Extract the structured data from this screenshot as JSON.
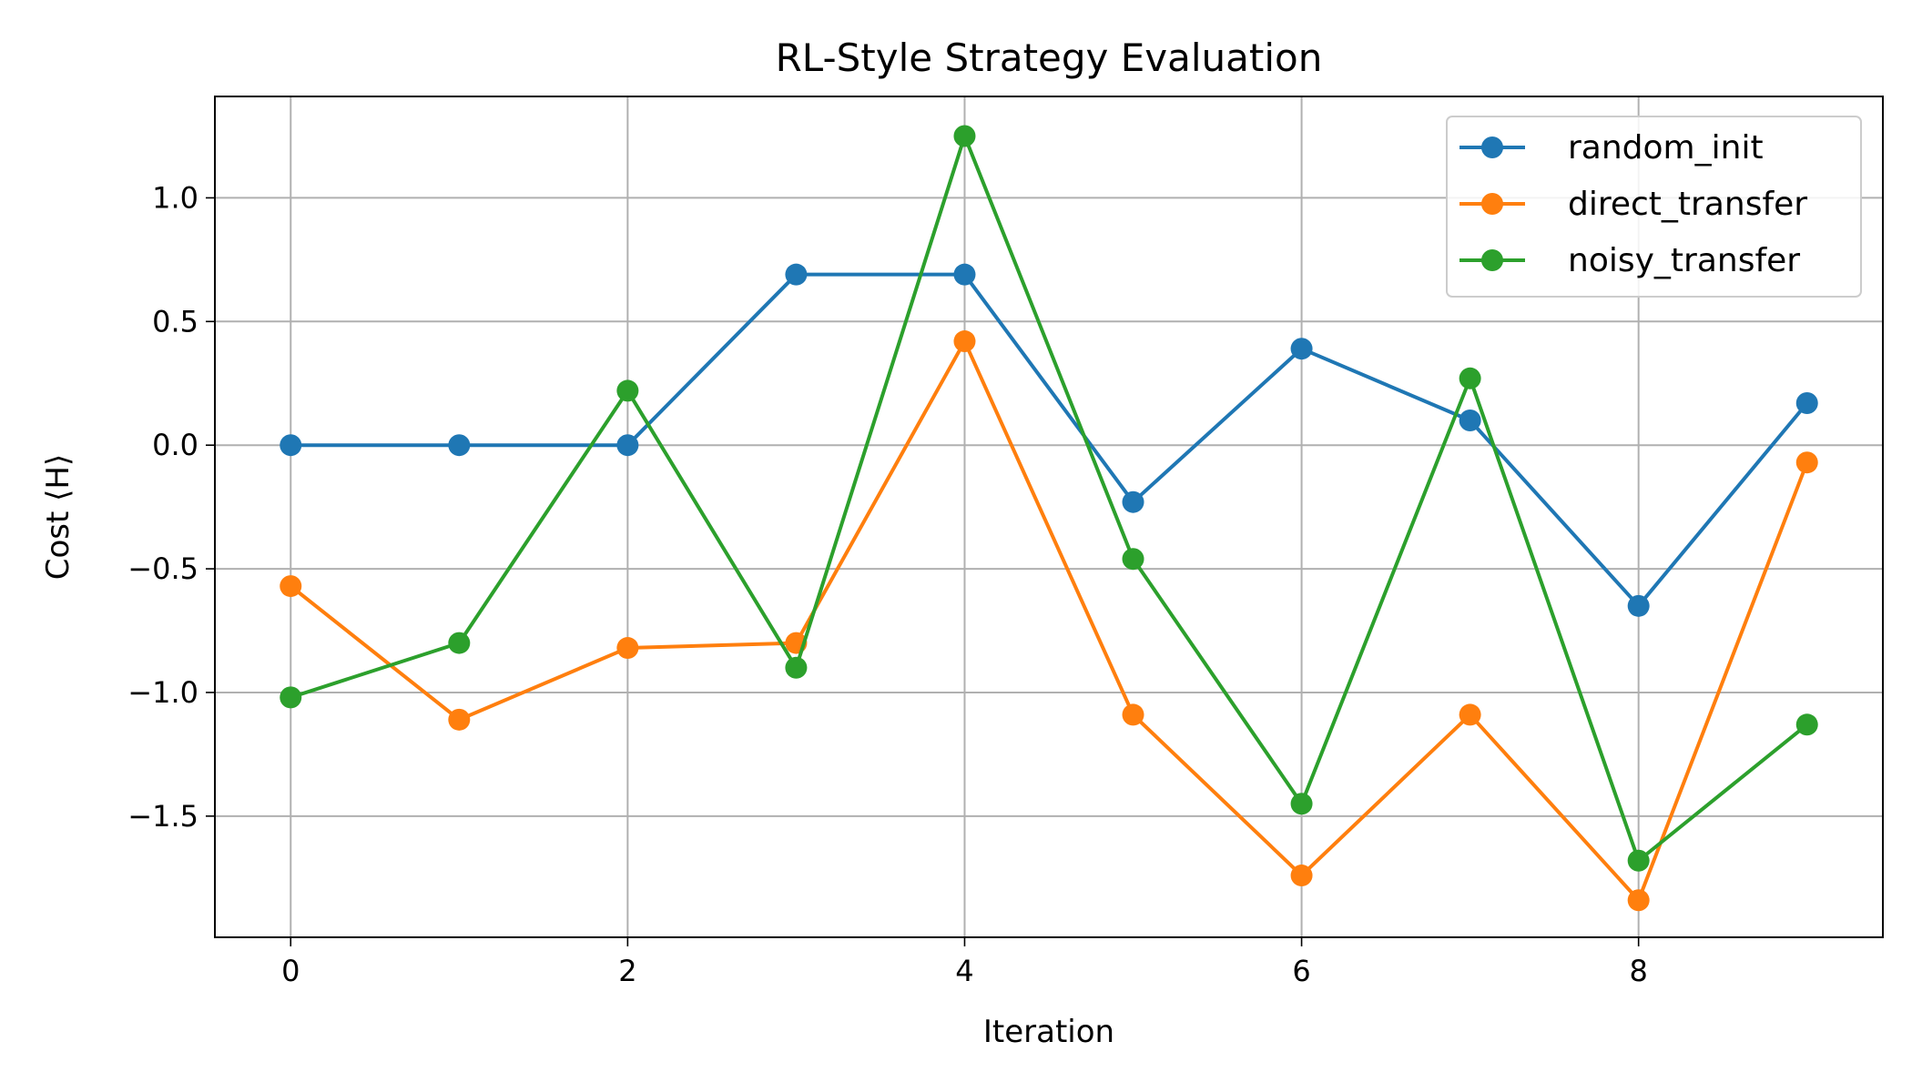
{
  "chart_data": {
    "type": "line",
    "title": "RL-Style Strategy Evaluation",
    "xlabel": "Iteration",
    "ylabel": "Cost ⟨H⟩",
    "x": [
      0,
      1,
      2,
      3,
      4,
      5,
      6,
      7,
      8,
      9
    ],
    "xlim": [
      -0.45,
      9.45
    ],
    "ylim": [
      -1.99,
      1.41
    ],
    "xticks": [
      0,
      2,
      4,
      6,
      8
    ],
    "xtick_labels": [
      "0",
      "2",
      "4",
      "6",
      "8"
    ],
    "yticks": [
      1.0,
      0.5,
      0.0,
      -0.5,
      -1.0,
      -1.5
    ],
    "ytick_labels": [
      "1.0",
      "0.5",
      "0.0",
      "−0.5",
      "−1.0",
      "−1.5"
    ],
    "grid": true,
    "legend_position": "top-right",
    "markers": "circle",
    "series": [
      {
        "name": "random_init",
        "color": "#1f77b4",
        "values": [
          0.0,
          0.0,
          0.0,
          0.69,
          0.69,
          -0.23,
          0.39,
          0.1,
          -0.65,
          0.17
        ]
      },
      {
        "name": "direct_transfer",
        "color": "#ff7f0e",
        "values": [
          -0.57,
          -1.11,
          -0.82,
          -0.8,
          0.42,
          -1.09,
          -1.74,
          -1.09,
          -1.84,
          -0.07
        ]
      },
      {
        "name": "noisy_transfer",
        "color": "#2ca02c",
        "values": [
          -1.02,
          -0.8,
          0.22,
          -0.9,
          1.25,
          -0.46,
          -1.45,
          0.27,
          -1.68,
          -1.13
        ]
      }
    ]
  }
}
